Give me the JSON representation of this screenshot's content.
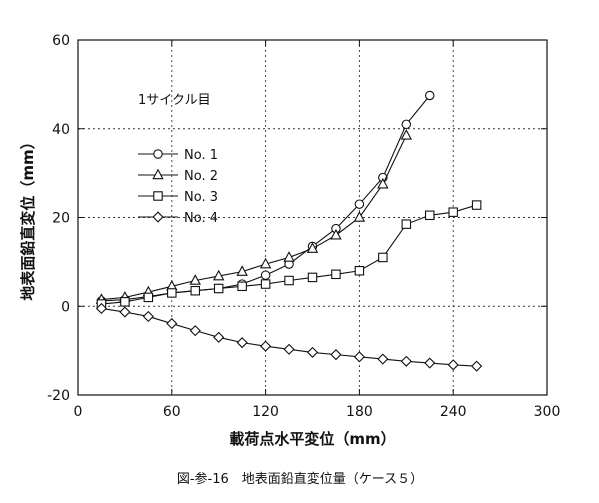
{
  "chart_data": {
    "type": "line",
    "caption": "図-参-16　地表面鉛直変位量（ケース５）",
    "xlabel": "載荷点水平変位（mm）",
    "ylabel": "地表面鉛直変位（mm）",
    "annotation": "1サイクル目",
    "xlim": [
      0,
      300
    ],
    "ylim": [
      -20,
      60
    ],
    "xticks": [
      0,
      60,
      120,
      180,
      240,
      300
    ],
    "yticks": [
      -20,
      0,
      20,
      40,
      60
    ],
    "grid": true,
    "legend_position": "center-left",
    "series": [
      {
        "name": "No. 1",
        "marker": "circle",
        "x": [
          15,
          30,
          45,
          60,
          75,
          90,
          105,
          120,
          135,
          150,
          165,
          180,
          195,
          210,
          225
        ],
        "y": [
          1.2,
          1.5,
          2.2,
          3.0,
          3.5,
          4.0,
          5.0,
          7.0,
          9.5,
          13.5,
          17.5,
          23.0,
          29.0,
          41.0,
          47.5
        ]
      },
      {
        "name": "No. 2",
        "marker": "triangle",
        "x": [
          15,
          30,
          45,
          60,
          75,
          90,
          105,
          120,
          135,
          150,
          165,
          180,
          195,
          210
        ],
        "y": [
          1.5,
          2.0,
          3.2,
          4.5,
          5.8,
          6.8,
          7.8,
          9.5,
          11.0,
          13.0,
          16.0,
          20.0,
          27.5,
          38.5
        ]
      },
      {
        "name": "No. 3",
        "marker": "square",
        "x": [
          15,
          30,
          45,
          60,
          75,
          90,
          105,
          120,
          135,
          150,
          165,
          180,
          195,
          210,
          225,
          240,
          255
        ],
        "y": [
          0.5,
          1.0,
          2.0,
          3.0,
          3.5,
          4.0,
          4.5,
          5.0,
          5.8,
          6.5,
          7.2,
          8.0,
          11.0,
          18.5,
          20.5,
          21.2,
          22.8
        ]
      },
      {
        "name": "No. 4",
        "marker": "diamond",
        "x": [
          15,
          30,
          45,
          60,
          75,
          90,
          105,
          120,
          135,
          150,
          165,
          180,
          195,
          210,
          225,
          240,
          255
        ],
        "y": [
          -0.5,
          -1.3,
          -2.3,
          -3.9,
          -5.5,
          -7.0,
          -8.2,
          -9.0,
          -9.7,
          -10.4,
          -10.9,
          -11.4,
          -11.9,
          -12.4,
          -12.8,
          -13.2,
          -13.5
        ]
      }
    ]
  }
}
